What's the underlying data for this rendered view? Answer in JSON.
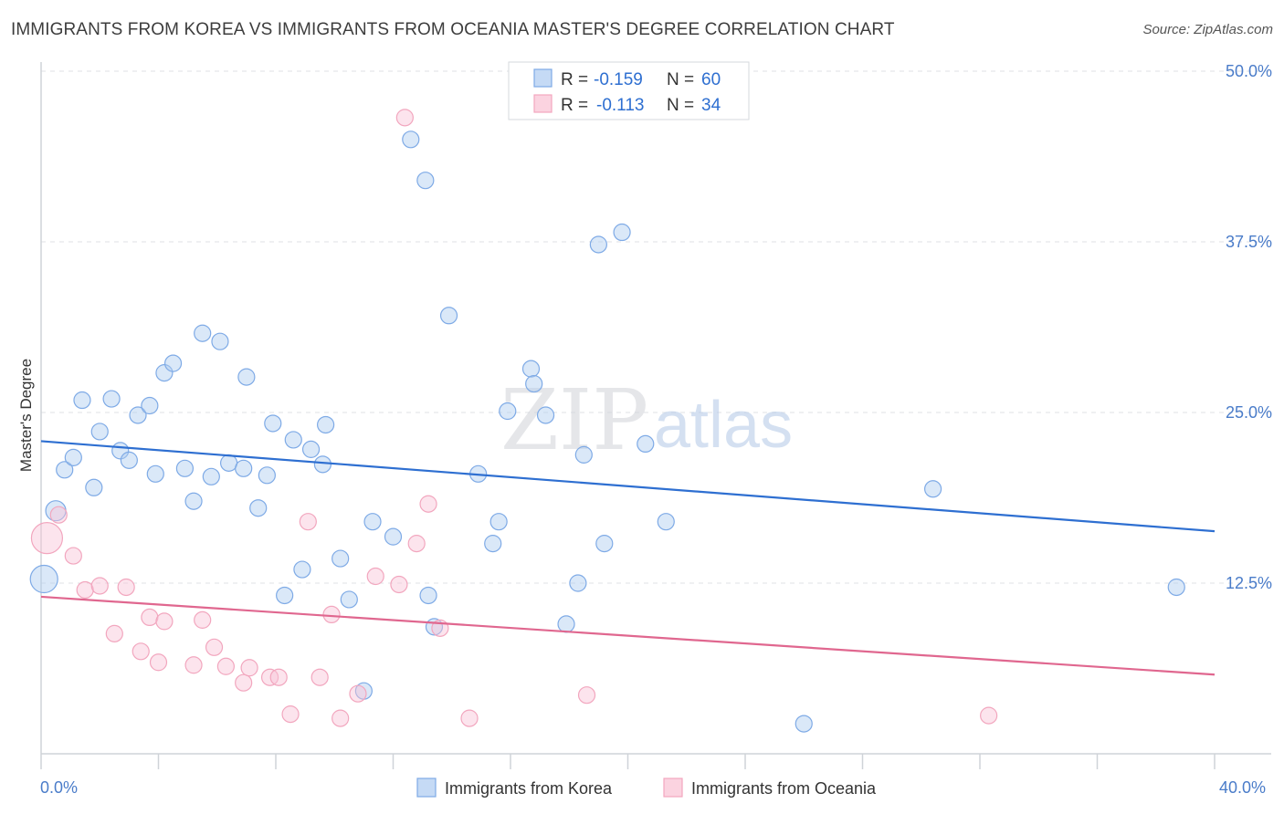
{
  "title": "IMMIGRANTS FROM KOREA VS IMMIGRANTS FROM OCEANIA MASTER'S DEGREE CORRELATION CHART",
  "source": "Source: ZipAtlas.com",
  "watermark": {
    "zip": "ZIP",
    "atlas": "atlas"
  },
  "chart_data": {
    "type": "scatter",
    "title": "IMMIGRANTS FROM KOREA VS IMMIGRANTS FROM OCEANIA MASTER'S DEGREE CORRELATION CHART",
    "xlabel": "",
    "ylabel": "Master's Degree",
    "xlim": [
      0,
      40
    ],
    "ylim": [
      0,
      50
    ],
    "x_tick_labels": [
      "0.0%",
      "40.0%"
    ],
    "y_ticks": [
      12.5,
      25.0,
      37.5,
      50.0
    ],
    "y_tick_labels": [
      "12.5%",
      "25.0%",
      "37.5%",
      "50.0%"
    ],
    "grid": true,
    "legend_position": "bottom",
    "series": [
      {
        "name": "Immigrants from Korea",
        "color": "#7eaae6",
        "line_color": "#2e6fd1",
        "R": "-0.159",
        "N": "60",
        "trend": [
          [
            0,
            22.9
          ],
          [
            40,
            16.3
          ]
        ],
        "points": [
          [
            0.5,
            17.8
          ],
          [
            0.1,
            12.8
          ],
          [
            0.8,
            20.8
          ],
          [
            1.1,
            21.7
          ],
          [
            1.4,
            25.9
          ],
          [
            1.8,
            19.5
          ],
          [
            2.0,
            23.6
          ],
          [
            2.4,
            26.0
          ],
          [
            2.7,
            22.2
          ],
          [
            3.0,
            21.5
          ],
          [
            3.3,
            24.8
          ],
          [
            3.7,
            25.5
          ],
          [
            3.9,
            20.5
          ],
          [
            4.2,
            27.9
          ],
          [
            4.5,
            28.6
          ],
          [
            4.9,
            20.9
          ],
          [
            5.2,
            18.5
          ],
          [
            5.5,
            30.8
          ],
          [
            5.8,
            20.3
          ],
          [
            6.1,
            30.2
          ],
          [
            6.4,
            21.3
          ],
          [
            6.9,
            20.9
          ],
          [
            7.0,
            27.6
          ],
          [
            7.4,
            18.0
          ],
          [
            7.7,
            20.4
          ],
          [
            7.9,
            24.2
          ],
          [
            8.3,
            11.6
          ],
          [
            8.6,
            23.0
          ],
          [
            8.9,
            13.5
          ],
          [
            9.2,
            22.3
          ],
          [
            9.6,
            21.2
          ],
          [
            9.7,
            24.1
          ],
          [
            10.2,
            14.3
          ],
          [
            10.5,
            11.3
          ],
          [
            11.0,
            4.6
          ],
          [
            11.3,
            17.0
          ],
          [
            12.0,
            15.9
          ],
          [
            12.6,
            45.0
          ],
          [
            13.1,
            42.0
          ],
          [
            13.2,
            11.6
          ],
          [
            13.4,
            9.3
          ],
          [
            13.9,
            32.1
          ],
          [
            14.9,
            20.5
          ],
          [
            15.4,
            15.4
          ],
          [
            15.6,
            17.0
          ],
          [
            15.9,
            25.1
          ],
          [
            16.7,
            28.2
          ],
          [
            16.8,
            27.1
          ],
          [
            17.2,
            24.8
          ],
          [
            17.9,
            9.5
          ],
          [
            18.3,
            12.5
          ],
          [
            18.5,
            21.9
          ],
          [
            19.0,
            37.3
          ],
          [
            19.2,
            15.4
          ],
          [
            19.8,
            38.2
          ],
          [
            20.6,
            22.7
          ],
          [
            21.3,
            17.0
          ],
          [
            30.4,
            19.4
          ],
          [
            26.0,
            2.2
          ],
          [
            38.7,
            12.2
          ]
        ]
      },
      {
        "name": "Immigrants from Oceania",
        "color": "#f2a6be",
        "line_color": "#e0678f",
        "R": "-0.113",
        "N": "34",
        "trend": [
          [
            0,
            11.5
          ],
          [
            40,
            5.8
          ]
        ],
        "points": [
          [
            0.2,
            15.8
          ],
          [
            0.6,
            17.5
          ],
          [
            1.1,
            14.5
          ],
          [
            1.5,
            12.0
          ],
          [
            2.0,
            12.3
          ],
          [
            2.5,
            8.8
          ],
          [
            2.9,
            12.2
          ],
          [
            3.4,
            7.5
          ],
          [
            3.7,
            10.0
          ],
          [
            4.0,
            6.7
          ],
          [
            4.2,
            9.7
          ],
          [
            5.2,
            6.5
          ],
          [
            5.5,
            9.8
          ],
          [
            5.9,
            7.8
          ],
          [
            6.3,
            6.4
          ],
          [
            6.9,
            5.2
          ],
          [
            7.1,
            6.3
          ],
          [
            7.8,
            5.6
          ],
          [
            8.1,
            5.6
          ],
          [
            8.5,
            2.9
          ],
          [
            9.1,
            17.0
          ],
          [
            9.5,
            5.6
          ],
          [
            9.9,
            10.2
          ],
          [
            10.2,
            2.6
          ],
          [
            10.8,
            4.4
          ],
          [
            11.4,
            13.0
          ],
          [
            12.2,
            12.4
          ],
          [
            12.4,
            46.6
          ],
          [
            12.8,
            15.4
          ],
          [
            13.2,
            18.3
          ],
          [
            13.6,
            9.2
          ],
          [
            14.6,
            2.6
          ],
          [
            18.6,
            4.3
          ],
          [
            32.3,
            2.8
          ]
        ]
      }
    ]
  },
  "legend": {
    "korea": "Immigrants from Korea",
    "oceania": "Immigrants from Oceania",
    "r_label": "R =",
    "n_label": "N ="
  }
}
